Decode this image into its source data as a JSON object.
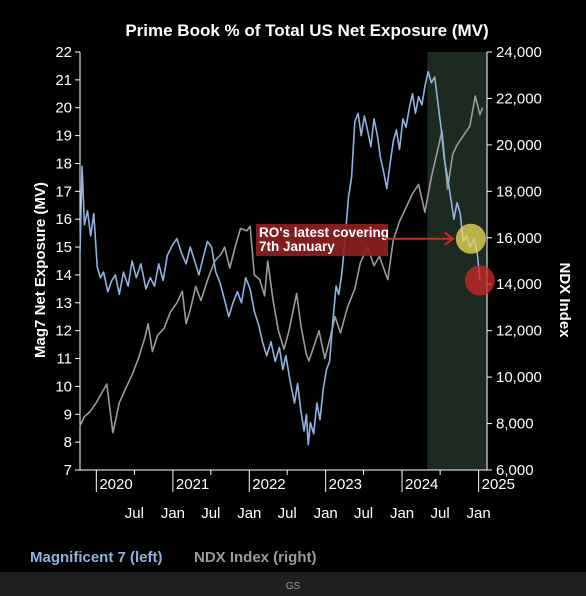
{
  "chart_data": {
    "type": "line",
    "title": "Prime Book % of Total US Net Exposure (MV)",
    "ylabel_left": "Mag7 Net Exposure (MV)",
    "ylabel_right": "NDX Index",
    "ylim_left": [
      7,
      22
    ],
    "ylim_right": [
      6000,
      24000
    ],
    "yticks_left": [
      "7",
      "8",
      "9",
      "10",
      "11",
      "12",
      "13",
      "14",
      "15",
      "16",
      "17",
      "18",
      "19",
      "20",
      "21",
      "22"
    ],
    "yticks_right": [
      "6,000",
      "8,000",
      "10,000",
      "12,000",
      "14,000",
      "16,000",
      "18,000",
      "20,000",
      "22,000",
      "24,000"
    ],
    "year_labels": [
      "2020",
      "2021",
      "2022",
      "2023",
      "2024",
      "2025"
    ],
    "month_labels": [
      "Jul",
      "Jan",
      "Jul",
      "Jan",
      "Jul",
      "Jan",
      "Jul",
      "Jan",
      "Jul",
      "Jan"
    ],
    "xlim": [
      "2019-10-15",
      "2025-02-10"
    ],
    "shaded_region": {
      "start": "2024-05-01",
      "end": "2025-02-10",
      "color": "#1c2a1f"
    },
    "series": [
      {
        "name": "Magnificent 7 (left)",
        "axis": "left",
        "color": "#8fb2e3",
        "points": [
          [
            "2019-10-15",
            14.8
          ],
          [
            "2019-10-25",
            17.9
          ],
          [
            "2019-11-05",
            15.8
          ],
          [
            "2019-11-20",
            16.3
          ],
          [
            "2019-12-05",
            15.4
          ],
          [
            "2019-12-20",
            16.2
          ],
          [
            "2020-01-05",
            14.3
          ],
          [
            "2020-01-20",
            13.9
          ],
          [
            "2020-02-05",
            14.1
          ],
          [
            "2020-02-25",
            13.4
          ],
          [
            "2020-03-15",
            13.8
          ],
          [
            "2020-04-01",
            14.0
          ],
          [
            "2020-04-20",
            13.3
          ],
          [
            "2020-05-10",
            14.1
          ],
          [
            "2020-06-01",
            13.6
          ],
          [
            "2020-06-20",
            14.5
          ],
          [
            "2020-07-10",
            13.9
          ],
          [
            "2020-08-01",
            14.4
          ],
          [
            "2020-08-25",
            13.5
          ],
          [
            "2020-09-15",
            13.9
          ],
          [
            "2020-10-05",
            13.6
          ],
          [
            "2020-10-25",
            14.4
          ],
          [
            "2020-11-15",
            13.8
          ],
          [
            "2020-12-05",
            14.7
          ],
          [
            "2021-01-01",
            15.1
          ],
          [
            "2021-01-20",
            15.3
          ],
          [
            "2021-02-10",
            14.8
          ],
          [
            "2021-03-05",
            14.4
          ],
          [
            "2021-03-25",
            15.0
          ],
          [
            "2021-04-15",
            14.5
          ],
          [
            "2021-05-05",
            14.0
          ],
          [
            "2021-05-25",
            14.6
          ],
          [
            "2021-06-15",
            15.2
          ],
          [
            "2021-07-05",
            15.0
          ],
          [
            "2021-07-25",
            14.1
          ],
          [
            "2021-08-15",
            13.7
          ],
          [
            "2021-09-05",
            13.1
          ],
          [
            "2021-09-25",
            12.5
          ],
          [
            "2021-10-15",
            13.0
          ],
          [
            "2021-11-05",
            13.4
          ],
          [
            "2021-11-25",
            13.0
          ],
          [
            "2021-12-15",
            13.9
          ],
          [
            "2022-01-05",
            13.5
          ],
          [
            "2022-01-25",
            12.7
          ],
          [
            "2022-02-15",
            12.2
          ],
          [
            "2022-03-05",
            11.6
          ],
          [
            "2022-03-25",
            11.1
          ],
          [
            "2022-04-15",
            11.6
          ],
          [
            "2022-05-05",
            10.9
          ],
          [
            "2022-05-25",
            11.4
          ],
          [
            "2022-06-10",
            10.6
          ],
          [
            "2022-06-25",
            11.1
          ],
          [
            "2022-07-15",
            10.2
          ],
          [
            "2022-08-05",
            9.4
          ],
          [
            "2022-08-20",
            10.1
          ],
          [
            "2022-09-05",
            9.1
          ],
          [
            "2022-09-20",
            8.4
          ],
          [
            "2022-10-01",
            9.0
          ],
          [
            "2022-10-10",
            7.9
          ],
          [
            "2022-10-20",
            8.7
          ],
          [
            "2022-11-05",
            8.3
          ],
          [
            "2022-11-20",
            9.4
          ],
          [
            "2022-12-05",
            8.8
          ],
          [
            "2022-12-20",
            9.9
          ],
          [
            "2023-01-05",
            10.6
          ],
          [
            "2023-01-20",
            10.9
          ],
          [
            "2023-02-05",
            12.4
          ],
          [
            "2023-02-20",
            13.6
          ],
          [
            "2023-03-05",
            13.3
          ],
          [
            "2023-03-20",
            14.1
          ],
          [
            "2023-04-05",
            15.4
          ],
          [
            "2023-04-20",
            16.8
          ],
          [
            "2023-05-05",
            17.5
          ],
          [
            "2023-05-20",
            19.5
          ],
          [
            "2023-06-05",
            19.8
          ],
          [
            "2023-06-20",
            19.0
          ],
          [
            "2023-07-05",
            19.7
          ],
          [
            "2023-07-20",
            19.2
          ],
          [
            "2023-08-05",
            18.6
          ],
          [
            "2023-08-20",
            19.6
          ],
          [
            "2023-09-05",
            19.0
          ],
          [
            "2023-09-20",
            18.2
          ],
          [
            "2023-10-05",
            17.7
          ],
          [
            "2023-10-20",
            17.1
          ],
          [
            "2023-11-05",
            18.0
          ],
          [
            "2023-11-20",
            18.8
          ],
          [
            "2023-12-05",
            19.2
          ],
          [
            "2023-12-20",
            18.5
          ],
          [
            "2024-01-05",
            19.6
          ],
          [
            "2024-01-20",
            19.3
          ],
          [
            "2024-02-05",
            20.0
          ],
          [
            "2024-02-20",
            20.5
          ],
          [
            "2024-03-05",
            19.8
          ],
          [
            "2024-03-20",
            20.4
          ],
          [
            "2024-04-05",
            20.1
          ],
          [
            "2024-04-20",
            20.8
          ],
          [
            "2024-05-05",
            21.3
          ],
          [
            "2024-05-20",
            20.9
          ],
          [
            "2024-06-05",
            21.1
          ],
          [
            "2024-06-20",
            20.2
          ],
          [
            "2024-07-05",
            19.3
          ],
          [
            "2024-07-20",
            18.2
          ],
          [
            "2024-08-05",
            17.5
          ],
          [
            "2024-08-20",
            16.8
          ],
          [
            "2024-09-05",
            16.0
          ],
          [
            "2024-09-20",
            16.6
          ],
          [
            "2024-10-05",
            16.2
          ],
          [
            "2024-10-20",
            15.2
          ],
          [
            "2024-11-05",
            15.4
          ],
          [
            "2024-11-20",
            15.0
          ],
          [
            "2024-12-10",
            15.3
          ],
          [
            "2024-12-25",
            14.8
          ],
          [
            "2025-01-07",
            13.8
          ]
        ]
      },
      {
        "name": "NDX Index (right)",
        "axis": "right",
        "color": "#9b9b9b",
        "points": [
          [
            "2019-10-15",
            7900
          ],
          [
            "2019-11-05",
            8300
          ],
          [
            "2019-12-01",
            8500
          ],
          [
            "2020-01-01",
            8900
          ],
          [
            "2020-02-01",
            9400
          ],
          [
            "2020-02-20",
            9700
          ],
          [
            "2020-03-20",
            7600
          ],
          [
            "2020-04-20",
            8900
          ],
          [
            "2020-05-20",
            9500
          ],
          [
            "2020-06-20",
            10100
          ],
          [
            "2020-07-20",
            10800
          ],
          [
            "2020-08-20",
            11700
          ],
          [
            "2020-09-05",
            12300
          ],
          [
            "2020-09-25",
            11100
          ],
          [
            "2020-10-20",
            11800
          ],
          [
            "2020-11-20",
            12100
          ],
          [
            "2020-12-20",
            12800
          ],
          [
            "2021-01-20",
            13200
          ],
          [
            "2021-02-15",
            13700
          ],
          [
            "2021-03-05",
            12300
          ],
          [
            "2021-03-25",
            12900
          ],
          [
            "2021-04-20",
            13900
          ],
          [
            "2021-05-15",
            13300
          ],
          [
            "2021-06-20",
            14300
          ],
          [
            "2021-07-20",
            15000
          ],
          [
            "2021-08-20",
            15300
          ],
          [
            "2021-09-05",
            15600
          ],
          [
            "2021-09-30",
            14700
          ],
          [
            "2021-10-25",
            15600
          ],
          [
            "2021-11-20",
            16400
          ],
          [
            "2021-12-20",
            16300
          ],
          [
            "2022-01-05",
            16500
          ],
          [
            "2022-01-25",
            14400
          ],
          [
            "2022-02-20",
            14200
          ],
          [
            "2022-03-15",
            13500
          ],
          [
            "2022-03-30",
            15000
          ],
          [
            "2022-04-25",
            13300
          ],
          [
            "2022-05-20",
            12000
          ],
          [
            "2022-06-16",
            11200
          ],
          [
            "2022-07-10",
            12000
          ],
          [
            "2022-08-15",
            13600
          ],
          [
            "2022-09-05",
            12200
          ],
          [
            "2022-09-30",
            11000
          ],
          [
            "2022-10-13",
            10700
          ],
          [
            "2022-11-01",
            11200
          ],
          [
            "2022-11-30",
            12000
          ],
          [
            "2022-12-28",
            10800
          ],
          [
            "2023-01-20",
            11600
          ],
          [
            "2023-02-15",
            12600
          ],
          [
            "2023-03-13",
            11900
          ],
          [
            "2023-04-15",
            13000
          ],
          [
            "2023-05-20",
            13800
          ],
          [
            "2023-06-15",
            14900
          ],
          [
            "2023-07-20",
            15600
          ],
          [
            "2023-08-20",
            14800
          ],
          [
            "2023-09-15",
            15200
          ],
          [
            "2023-10-25",
            14200
          ],
          [
            "2023-11-20",
            15900
          ],
          [
            "2023-12-20",
            16700
          ],
          [
            "2024-01-20",
            17300
          ],
          [
            "2024-02-20",
            17900
          ],
          [
            "2024-03-20",
            18300
          ],
          [
            "2024-04-19",
            17100
          ],
          [
            "2024-05-20",
            18600
          ],
          [
            "2024-06-20",
            19800
          ],
          [
            "2024-07-10",
            20600
          ],
          [
            "2024-08-05",
            18100
          ],
          [
            "2024-08-30",
            19600
          ],
          [
            "2024-09-20",
            20000
          ],
          [
            "2024-10-20",
            20400
          ],
          [
            "2024-11-20",
            20800
          ],
          [
            "2024-12-16",
            22100
          ],
          [
            "2025-01-07",
            21300
          ],
          [
            "2025-01-20",
            21600
          ]
        ]
      }
    ],
    "annotation": {
      "text_line1": "RO's latest covering",
      "text_line2": "7th January",
      "date": "2024-11-25",
      "value": 15.3,
      "box_color": "#8f1f22"
    },
    "markers": [
      {
        "date": "2024-11-25",
        "value": 15.3,
        "color": "#e8d85a"
      },
      {
        "date": "2025-01-07",
        "value": 13.8,
        "color": "#c6262d"
      }
    ],
    "grid": false
  },
  "legend": {
    "item1": "Magnificent 7 (left)",
    "item1_color": "#8fb2e3",
    "item2": "NDX Index (right)",
    "item2_color": "#9b9b9b"
  },
  "source": "GS"
}
